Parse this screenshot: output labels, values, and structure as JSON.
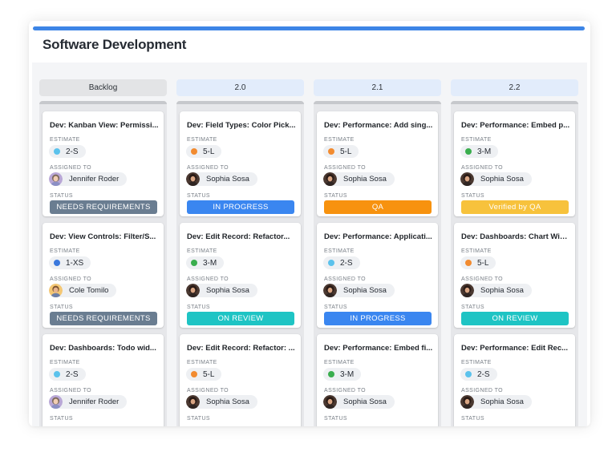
{
  "board": {
    "title": "Software Development",
    "accent_color": "#3d85e6",
    "field_labels": {
      "estimate": "ESTIMATE",
      "assigned": "ASSIGNED TO",
      "status": "STATUS"
    }
  },
  "columns": [
    {
      "name": "Backlog",
      "cards": [
        {
          "title": "Dev: Kanban View: Permissi...",
          "estimate": "2-S",
          "estimate_color": "#5bc2ec",
          "assignee": "Jennifer Roder",
          "avatar": "avatar-jennifer",
          "status": "NEEDS REQUIREMENTS",
          "status_color": "#6a7d91"
        },
        {
          "title": "Dev: View Controls: Filter/S...",
          "estimate": "1-XS",
          "estimate_color": "#3a78dd",
          "assignee": "Cole Tomilo",
          "avatar": "avatar-cole",
          "status": "NEEDS REQUIREMENTS",
          "status_color": "#6a7d91"
        },
        {
          "title": "Dev: Dashboards: Todo wid...",
          "estimate": "2-S",
          "estimate_color": "#5bc2ec",
          "assignee": "Jennifer Roder",
          "avatar": "avatar-jennifer",
          "status": "",
          "status_color": ""
        }
      ]
    },
    {
      "name": "2.0",
      "cards": [
        {
          "title": "Dev: Field Types: Color Pick...",
          "estimate": "5-L",
          "estimate_color": "#f28b30",
          "assignee": "Sophia Sosa",
          "avatar": "avatar-sophia",
          "status": "IN PROGRESS",
          "status_color": "#3a86f0"
        },
        {
          "title": "Dev: Edit Record: Refactor...",
          "estimate": "3-M",
          "estimate_color": "#3aae4e",
          "assignee": "Sophia Sosa",
          "avatar": "avatar-sophia",
          "status": "ON REVIEW",
          "status_color": "#1ec4c4"
        },
        {
          "title": "Dev: Edit Record: Refactor: ...",
          "estimate": "5-L",
          "estimate_color": "#f28b30",
          "assignee": "Sophia Sosa",
          "avatar": "avatar-sophia",
          "status": "",
          "status_color": ""
        }
      ]
    },
    {
      "name": "2.1",
      "cards": [
        {
          "title": "Dev: Performance: Add sing...",
          "estimate": "5-L",
          "estimate_color": "#f28b30",
          "assignee": "Sophia Sosa",
          "avatar": "avatar-sophia",
          "status": "QA",
          "status_color": "#f7920f"
        },
        {
          "title": "Dev: Performance: Applicati...",
          "estimate": "2-S",
          "estimate_color": "#5bc2ec",
          "assignee": "Sophia Sosa",
          "avatar": "avatar-sophia",
          "status": "IN PROGRESS",
          "status_color": "#3a86f0"
        },
        {
          "title": "Dev: Performance: Embed fi...",
          "estimate": "3-M",
          "estimate_color": "#3aae4e",
          "assignee": "Sophia Sosa",
          "avatar": "avatar-sophia",
          "status": "",
          "status_color": ""
        }
      ]
    },
    {
      "name": "2.2",
      "cards": [
        {
          "title": "Dev: Performance: Embed p...",
          "estimate": "3-M",
          "estimate_color": "#3aae4e",
          "assignee": "Sophia Sosa",
          "avatar": "avatar-sophia",
          "status": "Verified by QA",
          "status_color": "#f7c23c"
        },
        {
          "title": "Dev: Dashboards: Chart Wid...",
          "estimate": "5-L",
          "estimate_color": "#f28b30",
          "assignee": "Sophia Sosa",
          "avatar": "avatar-sophia",
          "status": "ON REVIEW",
          "status_color": "#1ec4c4"
        },
        {
          "title": "Dev: Performance: Edit Rec...",
          "estimate": "2-S",
          "estimate_color": "#5bc2ec",
          "assignee": "Sophia Sosa",
          "avatar": "avatar-sophia",
          "status": "",
          "status_color": ""
        }
      ]
    }
  ]
}
